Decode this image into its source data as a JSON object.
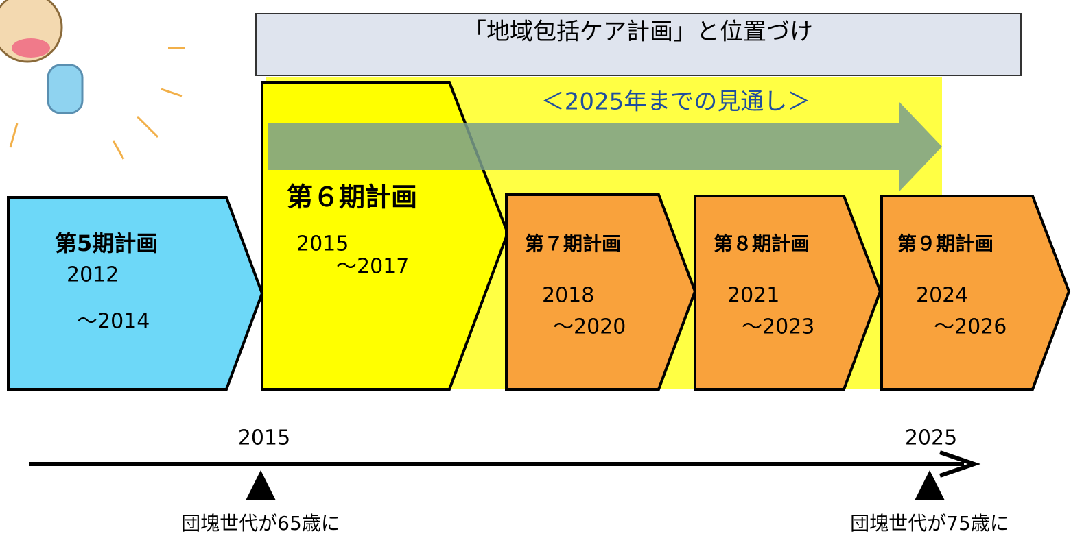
{
  "title": "「地域包括ケア計画」と位置づけ",
  "outlook": "＜2025年までの見通し＞",
  "plans": [
    {
      "label": "第5期計画",
      "start": "2012",
      "end": "～2014"
    },
    {
      "label": "第６期計画",
      "start": "2015",
      "end": "～2017"
    },
    {
      "label": "第７期計画",
      "start": "2018",
      "end": "～2020"
    },
    {
      "label": "第８期計画",
      "start": "2021",
      "end": "～2023"
    },
    {
      "label": "第９期計画",
      "start": "2024",
      "end": "～2026"
    }
  ],
  "timeline": {
    "years": [
      "2015",
      "2025"
    ],
    "milestones": [
      "団塊世代が65歳に",
      "団塊世代が75歳に"
    ]
  }
}
